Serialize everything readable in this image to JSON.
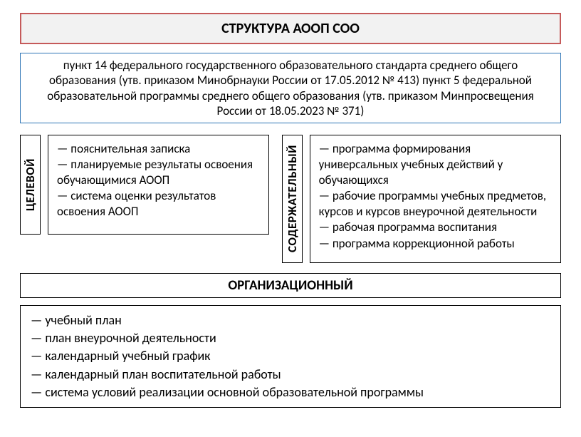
{
  "title": "СТРУКТУРА АООП СОО",
  "intro": "пункт 14 федерального государственного образовательного стандарта среднего общего образования (утв. приказом Минобрнауки России от 17.05.2012 № 413) пункт 5 федеральной образовательной программы среднего общего образования (утв. приказом Минпросвещения России от 18.05.2023 № 371)",
  "colors": {
    "title_border": "#c55a5a",
    "title_bg": "#f2f2f2",
    "intro_border": "#2e75b6",
    "box_border": "#000000",
    "background": "#ffffff",
    "text": "#000000"
  },
  "fonts": {
    "family": "Calibri",
    "title_size_pt": 15,
    "body_size_pt": 13,
    "label_weight": "bold"
  },
  "sections": {
    "target": {
      "label": "ЦЕЛЕВОЙ",
      "items": [
        "— пояснительная записка",
        "— планируемые результаты освоения обучающимися АООП",
        "— система оценки результатов освоения АООП"
      ]
    },
    "content": {
      "label": "СОДЕРЖАТЕЛЬНЫЙ",
      "items": [
        "— программа формирования универсальных учебных действий у обучающихся",
        "— рабочие программы учебных предметов, курсов и курсов внеурочной деятельности",
        "— рабочая программа воспитания",
        "— программа коррекционной работы"
      ]
    },
    "org": {
      "label": "ОРГАНИЗАЦИОННЫЙ",
      "items": [
        "— учебный план",
        "— план внеурочной деятельности",
        "— календарный учебный график",
        "— календарный план воспитательной работы",
        "— система условий реализации основной образовательной программы"
      ]
    }
  }
}
